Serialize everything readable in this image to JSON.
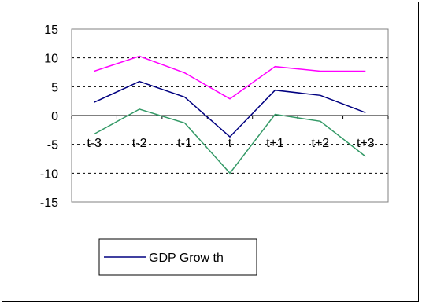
{
  "chart_data": {
    "type": "line",
    "categories": [
      "t-3",
      "t-2",
      "t-1",
      "t",
      "t+1",
      "t+2",
      "t+3"
    ],
    "y_ticks": [
      "15",
      "10",
      "5",
      "0",
      "-5",
      "-10",
      "-15"
    ],
    "ylim": [
      -15,
      15
    ],
    "grid": "horizontal dashed",
    "legend_position": "bottom-left",
    "series": [
      {
        "name": "",
        "color": "#ff00ff",
        "values": [
          7.7,
          10.3,
          7.4,
          2.9,
          8.5,
          7.7,
          7.7
        ]
      },
      {
        "name": "GDP Grow th",
        "color": "#000080",
        "values": [
          2.3,
          5.9,
          3.2,
          -3.7,
          4.4,
          3.5,
          0.5
        ]
      },
      {
        "name": "",
        "color": "#339966",
        "values": [
          -3.2,
          1.1,
          -1.3,
          -10.0,
          0.2,
          -1.0,
          -7.1
        ]
      }
    ]
  }
}
